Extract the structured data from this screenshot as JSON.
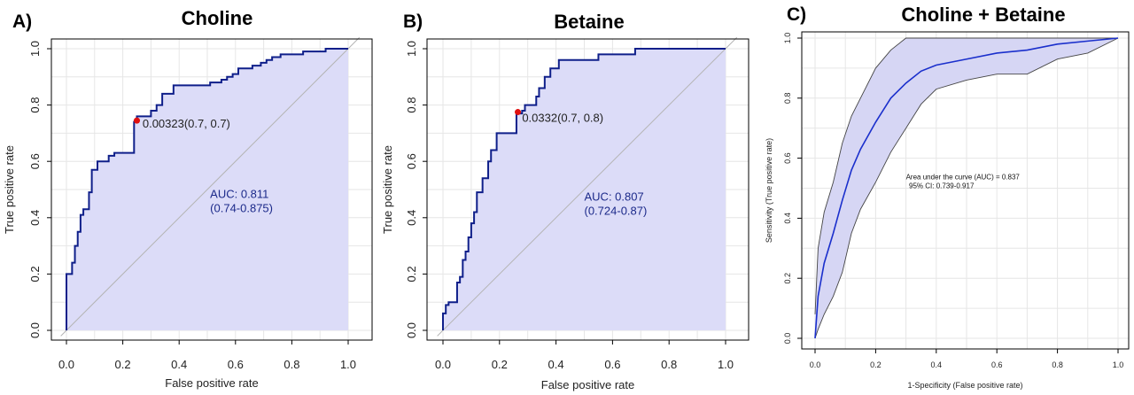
{
  "chart_data": [
    {
      "type": "line",
      "panel_label": "A)",
      "title": "Choline",
      "xlabel": "False positive rate",
      "ylabel": "True positive rate",
      "xlim": [
        0,
        1
      ],
      "ylim": [
        0,
        1
      ],
      "xticks": [
        "0.0",
        "0.2",
        "0.4",
        "0.6",
        "0.8",
        "1.0"
      ],
      "yticks": [
        "0.0",
        "0.2",
        "0.4",
        "0.6",
        "0.8",
        "1.0"
      ],
      "grid": true,
      "fill_color": "#dcdcf8",
      "line_color": "#0f1f8a",
      "auc_text": "AUC: 0.811",
      "ci_text": "(0.74-0.875)",
      "threshold_text": "0.00323(0.7, 0.7)",
      "threshold_point": [
        0.25,
        0.745
      ],
      "series": [
        {
          "x": [
            0,
            0,
            0.02,
            0.02,
            0.03,
            0.03,
            0.04,
            0.04,
            0.05,
            0.05,
            0.06,
            0.06,
            0.08,
            0.08,
            0.09,
            0.09,
            0.11,
            0.11,
            0.13,
            0.13,
            0.15,
            0.15,
            0.17,
            0.17,
            0.24,
            0.24,
            0.25,
            0.25,
            0.28,
            0.28,
            0.3,
            0.3,
            0.32,
            0.32,
            0.34,
            0.34,
            0.35,
            0.35,
            0.38,
            0.38,
            0.41,
            0.41,
            0.51,
            0.51,
            0.55,
            0.55,
            0.57,
            0.57,
            0.59,
            0.59,
            0.61,
            0.61,
            0.66,
            0.66,
            0.69,
            0.69,
            0.71,
            0.71,
            0.73,
            0.73,
            0.76,
            0.76,
            0.84,
            0.84,
            0.92,
            0.92,
            1.0
          ],
          "y": [
            0,
            0.2,
            0.2,
            0.24,
            0.24,
            0.3,
            0.3,
            0.35,
            0.35,
            0.41,
            0.41,
            0.43,
            0.43,
            0.49,
            0.49,
            0.57,
            0.57,
            0.6,
            0.6,
            0.6,
            0.6,
            0.62,
            0.62,
            0.63,
            0.63,
            0.74,
            0.74,
            0.76,
            0.76,
            0.76,
            0.76,
            0.78,
            0.78,
            0.8,
            0.8,
            0.84,
            0.84,
            0.84,
            0.84,
            0.87,
            0.87,
            0.87,
            0.87,
            0.88,
            0.88,
            0.89,
            0.89,
            0.9,
            0.9,
            0.91,
            0.91,
            0.93,
            0.93,
            0.94,
            0.94,
            0.95,
            0.95,
            0.96,
            0.96,
            0.97,
            0.97,
            0.98,
            0.98,
            0.99,
            0.99,
            1.0,
            1.0
          ]
        }
      ]
    },
    {
      "type": "line",
      "panel_label": "B)",
      "title": "Betaine",
      "xlabel": "False positive rate",
      "ylabel": "True positive rate",
      "xlim": [
        0,
        1
      ],
      "ylim": [
        0,
        1
      ],
      "xticks": [
        "0.0",
        "0.2",
        "0.4",
        "0.6",
        "0.8",
        "1.0"
      ],
      "yticks": [
        "0.0",
        "0.2",
        "0.4",
        "0.6",
        "0.8",
        "1.0"
      ],
      "grid": true,
      "fill_color": "#dcdcf8",
      "line_color": "#0f1f8a",
      "auc_text": "AUC: 0.807",
      "ci_text": "(0.724-0.87)",
      "threshold_text": "0.0332(0.7, 0.8)",
      "threshold_point": [
        0.265,
        0.775
      ],
      "series": [
        {
          "x": [
            0,
            0,
            0.01,
            0.01,
            0.02,
            0.02,
            0.05,
            0.05,
            0.06,
            0.06,
            0.07,
            0.07,
            0.08,
            0.08,
            0.09,
            0.09,
            0.1,
            0.1,
            0.11,
            0.11,
            0.12,
            0.12,
            0.14,
            0.14,
            0.16,
            0.16,
            0.17,
            0.17,
            0.19,
            0.19,
            0.26,
            0.26,
            0.28,
            0.28,
            0.29,
            0.29,
            0.33,
            0.33,
            0.34,
            0.34,
            0.36,
            0.36,
            0.38,
            0.38,
            0.41,
            0.41,
            0.55,
            0.55,
            0.68,
            0.68,
            1.0
          ],
          "y": [
            0,
            0.06,
            0.06,
            0.09,
            0.09,
            0.1,
            0.1,
            0.17,
            0.17,
            0.19,
            0.19,
            0.25,
            0.25,
            0.28,
            0.28,
            0.33,
            0.33,
            0.38,
            0.38,
            0.42,
            0.42,
            0.49,
            0.49,
            0.54,
            0.54,
            0.6,
            0.6,
            0.64,
            0.64,
            0.7,
            0.7,
            0.77,
            0.77,
            0.78,
            0.78,
            0.8,
            0.8,
            0.83,
            0.83,
            0.86,
            0.86,
            0.9,
            0.9,
            0.93,
            0.93,
            0.96,
            0.96,
            0.98,
            0.98,
            1.0,
            1.0
          ]
        }
      ]
    },
    {
      "type": "line",
      "panel_label": "C)",
      "title": "Choline + Betaine",
      "xlabel": "1-Specificity (False positive rate)",
      "ylabel": "Sensitivity (True positive rate)",
      "xlim": [
        0,
        1
      ],
      "ylim": [
        0,
        1
      ],
      "xticks": [
        "0.0",
        "0.2",
        "0.4",
        "0.6",
        "0.8",
        "1.0"
      ],
      "yticks": [
        "0.0",
        "0.2",
        "0.4",
        "0.6",
        "0.8",
        "1.0"
      ],
      "grid": true,
      "fill_color": "#d6d6f4",
      "line_color": "#1a2fcc",
      "annotation_line1": "Area under the curve (AUC) = 0.837",
      "annotation_line2": "95% CI: 0.739-0.917",
      "series": [
        {
          "x": [
            0,
            0.01,
            0.03,
            0.06,
            0.09,
            0.12,
            0.15,
            0.2,
            0.25,
            0.3,
            0.35,
            0.4,
            0.5,
            0.6,
            0.7,
            0.8,
            0.9,
            1.0
          ],
          "y": [
            0,
            0.14,
            0.25,
            0.35,
            0.46,
            0.56,
            0.63,
            0.72,
            0.8,
            0.85,
            0.89,
            0.91,
            0.93,
            0.95,
            0.96,
            0.98,
            0.99,
            1.0
          ]
        }
      ],
      "ci_band": {
        "x": [
          0,
          0.01,
          0.03,
          0.06,
          0.09,
          0.12,
          0.15,
          0.2,
          0.25,
          0.3,
          0.35,
          0.4,
          0.5,
          0.6,
          0.7,
          0.8,
          0.9,
          1.0
        ],
        "upper": [
          0.08,
          0.3,
          0.42,
          0.52,
          0.65,
          0.74,
          0.8,
          0.9,
          0.96,
          1.0,
          1.0,
          1.0,
          1.0,
          1.0,
          1.0,
          1.0,
          1.0,
          1.0
        ],
        "lower": [
          0,
          0.03,
          0.08,
          0.14,
          0.22,
          0.35,
          0.43,
          0.52,
          0.62,
          0.7,
          0.78,
          0.83,
          0.86,
          0.88,
          0.88,
          0.93,
          0.95,
          1.0
        ]
      }
    }
  ]
}
